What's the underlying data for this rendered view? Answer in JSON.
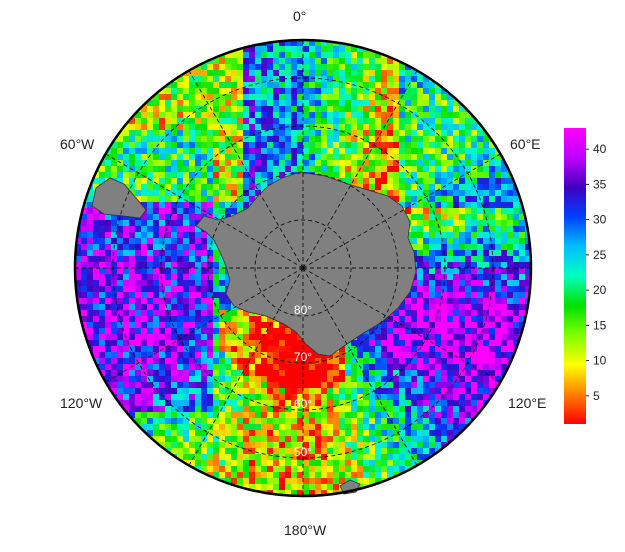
{
  "map": {
    "projection": "south-polar-stereographic",
    "longitude_labels": {
      "top": "0°",
      "bottom": "180°W",
      "upper_left": "60°W",
      "upper_right": "60°E",
      "lower_left": "120°W",
      "lower_right": "120°E"
    },
    "latitude_labels": [
      "80°",
      "70°",
      "60°",
      "50°"
    ],
    "latitude_circles": [
      80,
      70,
      60,
      50
    ],
    "meridians_deg": [
      0,
      30,
      60,
      90,
      120,
      150,
      180,
      210,
      240,
      270,
      300,
      330
    ],
    "land_color": "#808080",
    "ocean_background": "#ffffff"
  },
  "colorbar": {
    "min": 1,
    "max": 43,
    "ticks": [
      "5",
      "10",
      "15",
      "20",
      "25",
      "30",
      "35",
      "40"
    ],
    "tick_values": [
      5,
      10,
      15,
      20,
      25,
      30,
      35,
      40
    ],
    "colors": [
      "#ff0000",
      "#ff7f00",
      "#ffff00",
      "#7fff00",
      "#00e000",
      "#00ffbf",
      "#00bfff",
      "#0040ff",
      "#4000c0",
      "#bf00ff",
      "#ff00ff"
    ]
  }
}
